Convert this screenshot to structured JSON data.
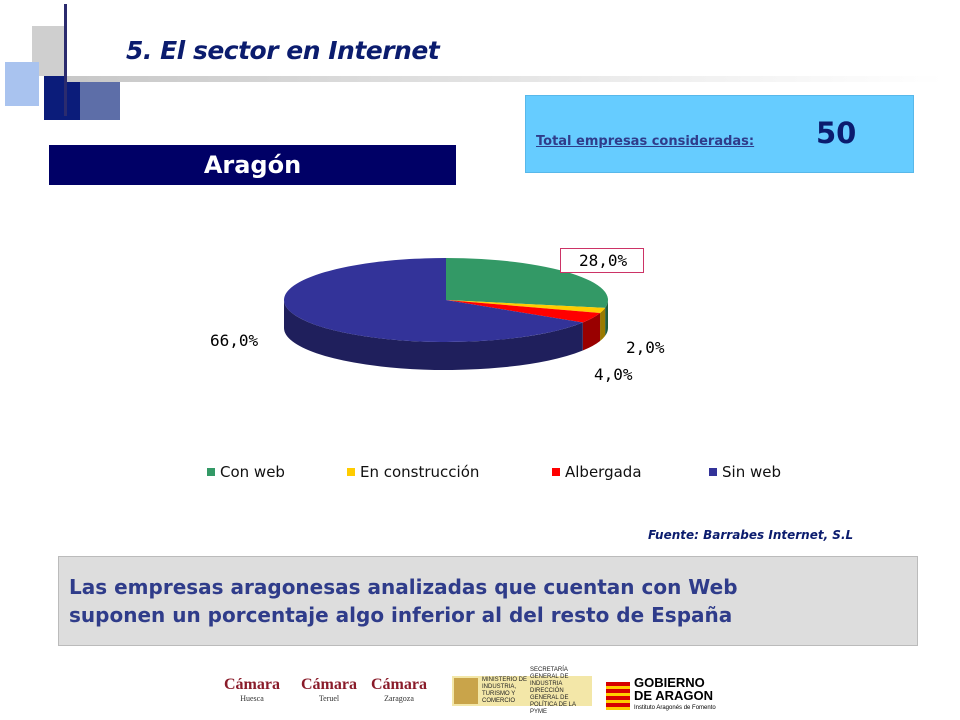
{
  "slide": {
    "title": "5. El sector en Internet",
    "region": "Aragón",
    "total_label": "Total empresas consideradas:",
    "total_value": "50",
    "source": "Fuente: Barrabes Internet, S.L",
    "conclusion_line1": "Las empresas aragonesas analizadas que cuentan con Web",
    "conclusion_line2": "suponen un porcentaje algo inferior al del resto de España"
  },
  "chart_data": {
    "type": "pie",
    "style": "3d",
    "categories": [
      "Con web",
      "En construcción",
      "Albergada",
      "Sin web"
    ],
    "values": [
      28.0,
      2.0,
      4.0,
      66.0
    ],
    "labels": [
      "28,0%",
      "2,0%",
      "4,0%",
      "66,0%"
    ],
    "colors": [
      "#339966",
      "#ffcc00",
      "#ff0000",
      "#333399"
    ],
    "side_colors": [
      "#1f5c3d",
      "#997a00",
      "#990000",
      "#1f1f5c"
    ],
    "legend_position": "bottom"
  },
  "logos": {
    "camara": "Cámara",
    "huesca": "Huesca",
    "teruel": "Teruel",
    "zaragoza": "Zaragoza",
    "ministerio": "MINISTERIO DE INDUSTRIA, TURISMO Y COMERCIO",
    "secretaria": "SECRETARÍA GENERAL DE INDUSTRIA",
    "direccion": "DIRECCIÓN GENERAL DE POLÍTICA DE LA PYME",
    "gobierno_1": "GOBIERNO",
    "gobierno_2": "DE ARAGON",
    "gobierno_sub": "Instituto Aragonés de Fomento"
  }
}
